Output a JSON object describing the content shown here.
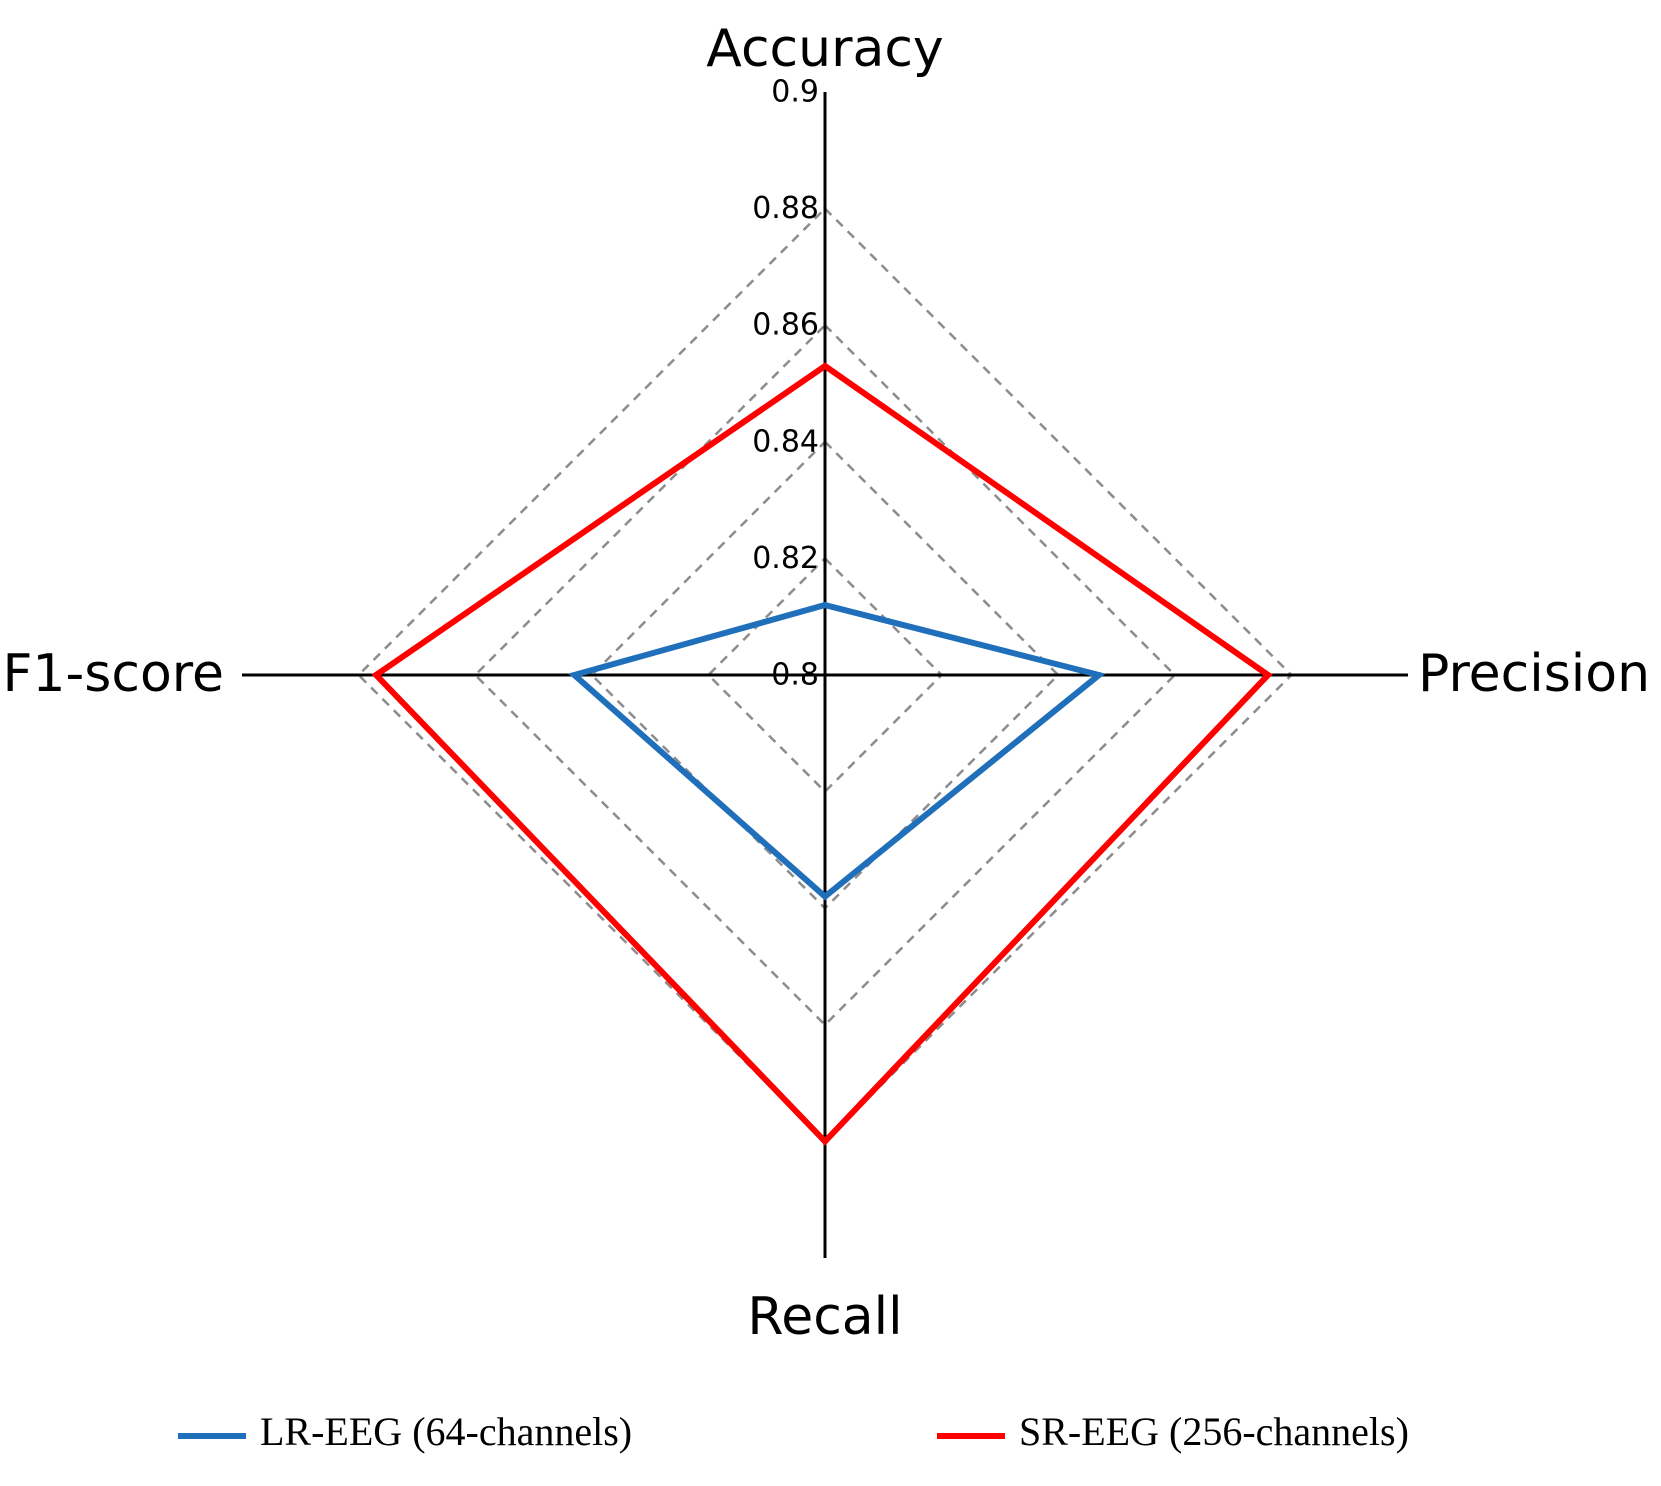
{
  "chart_data": {
    "type": "radar",
    "axes": [
      "Accuracy",
      "Precision",
      "Recall",
      "F1-score"
    ],
    "rlim": [
      0.8,
      0.9
    ],
    "ticks": [
      0.8,
      0.82,
      0.84,
      0.86,
      0.88,
      0.9
    ],
    "tick_labels": [
      "0.8",
      "0.82",
      "0.84",
      "0.86",
      "0.88",
      "0.9"
    ],
    "grid": "dashed",
    "legend_position": "bottom",
    "series": [
      {
        "name": "LR-EEG (64-channels)",
        "color": "#1f6fba",
        "values": [
          0.812,
          0.847,
          0.838,
          0.843
        ]
      },
      {
        "name": "SR-EEG (256-channels)",
        "color": "#ff0000",
        "values": [
          0.853,
          0.876,
          0.88,
          0.877
        ]
      }
    ]
  }
}
